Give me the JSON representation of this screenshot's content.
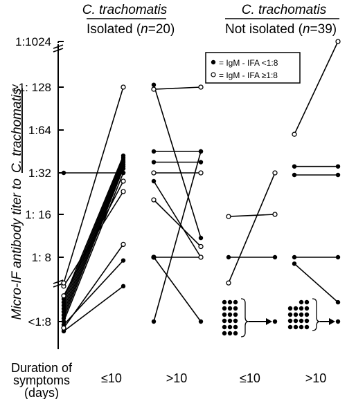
{
  "chart_data": {
    "type": "scatter",
    "panels": [
      {
        "title_italic": "C. trachomatis",
        "title_sub": "Isolated",
        "n_label": "n",
        "n_value": "=20)"
      },
      {
        "title_italic": "C. trachomatis",
        "title_sub": "Not isolated",
        "n_label": "n",
        "n_value": "=39)"
      }
    ],
    "ylabel": "Micro-IF antibody titer to",
    "ylabel_italic": "C. trachomatis",
    "yticks": [
      "<1:8",
      "1: 8",
      "1: 16",
      "1:32",
      "1:64",
      "≥1: 128",
      "1:1024"
    ],
    "xlabel_lines": [
      "Duration of",
      "symptoms",
      "(days)"
    ],
    "x_categories": [
      "≤10",
      ">10",
      "≤10",
      ">10"
    ],
    "legend": [
      {
        "marker": "filled",
        "label": "= IgM - IFA <1:8"
      },
      {
        "marker": "open",
        "label": "= IgM - IFA ≥1:8"
      }
    ],
    "pairs": [
      {
        "g": 0,
        "y1": 0,
        "y2": 3,
        "m": "filled"
      },
      {
        "g": 0,
        "y1": 0.05,
        "y2": 3.1,
        "m": "filled"
      },
      {
        "g": 0,
        "y1": 0.1,
        "y2": 3.15,
        "m": "filled"
      },
      {
        "g": 0,
        "y1": 0.15,
        "y2": 3.2,
        "m": "filled"
      },
      {
        "g": 0,
        "y1": 0.2,
        "y2": 3.25,
        "m": "filled"
      },
      {
        "g": 0,
        "y1": 0.25,
        "y2": 3.3,
        "m": "filled"
      },
      {
        "g": 0,
        "y1": 0.3,
        "y2": 3.35,
        "m": "filled"
      },
      {
        "g": 0,
        "y1": 0.35,
        "y2": 3.4,
        "m": "filled"
      },
      {
        "g": 0,
        "y1": -0.15,
        "y2": 0.55,
        "m": "filled"
      },
      {
        "g": 0,
        "y1": -0.05,
        "y2": 0.95,
        "m": "filled"
      },
      {
        "g": 0,
        "y1": 0.4,
        "y2": 2.8,
        "m": "open"
      },
      {
        "g": 0,
        "y1": 0.55,
        "y2": 2.55,
        "m": "open"
      },
      {
        "g": 0,
        "y1": -0.1,
        "y2": 1.3,
        "m": "open"
      },
      {
        "g": 0,
        "y1": 0.6,
        "y2": 5,
        "m": "open"
      },
      {
        "g": 0,
        "y1": 3,
        "y2": 3,
        "m": "filled"
      },
      {
        "g": 1,
        "y1": 0,
        "y2": 3.5,
        "m": "filled"
      },
      {
        "g": 1,
        "y1": 3.5,
        "y2": 3.5,
        "m": "filled"
      },
      {
        "g": 1,
        "y1": 3.25,
        "y2": 3.25,
        "m": "filled"
      },
      {
        "g": 1,
        "y1": 3.0,
        "y2": 3.0,
        "m": "open"
      },
      {
        "g": 1,
        "y1": 2.8,
        "y2": 1.0,
        "m": "filled"
      },
      {
        "g": 1,
        "y1": 5.05,
        "y2": 1.45,
        "m": "filled"
      },
      {
        "g": 1,
        "y1": 1.0,
        "y2": 1.0,
        "m": "open"
      },
      {
        "g": 1,
        "y1": 2.35,
        "y2": 1.25,
        "m": "open"
      },
      {
        "g": 1,
        "y1": 4.95,
        "y2": 5,
        "m": "open"
      },
      {
        "g": 1,
        "y1": 1.0,
        "y2": 0,
        "m": "filled"
      },
      {
        "g": 2,
        "y1": 0.6,
        "y2": 3,
        "m": "open"
      },
      {
        "g": 2,
        "y1": 1.95,
        "y2": 2,
        "m": "open"
      },
      {
        "g": 2,
        "y1": 1.0,
        "y2": 1.0,
        "m": "filled"
      },
      {
        "g": 3,
        "y1": 3.9,
        "y2": 6,
        "m": "open"
      },
      {
        "g": 3,
        "y1": 3.15,
        "y2": 3.15,
        "m": "filled"
      },
      {
        "g": 3,
        "y1": 2.95,
        "y2": 2.95,
        "m": "filled"
      },
      {
        "g": 3,
        "y1": 1.0,
        "y2": 1.0,
        "m": "filled"
      },
      {
        "g": 3,
        "y1": 0.9,
        "y2": 0.3,
        "m": "filled"
      }
    ],
    "clusters": [
      {
        "g": 2,
        "rows": [
          3,
          3,
          3,
          3,
          3,
          3
        ],
        "target_y": 0
      },
      {
        "g": 3,
        "rows": [
          2,
          4,
          4,
          4,
          4
        ],
        "target_y": 0
      }
    ]
  }
}
